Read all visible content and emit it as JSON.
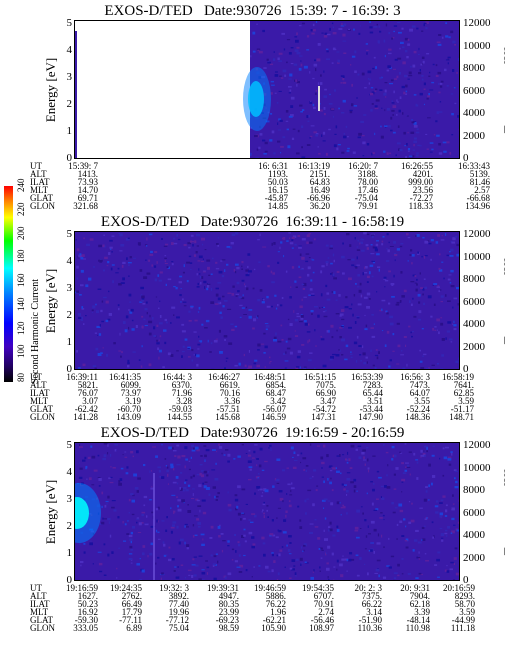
{
  "colorbar": {
    "label": "Second Harmonic Current",
    "ticks": [
      "240",
      "220",
      "200",
      "180",
      "160",
      "140",
      "120",
      "100",
      "80"
    ],
    "colors": [
      "#ff0000",
      "#ff8800",
      "#ffff00",
      "#00ff00",
      "#00ffff",
      "#0080ff",
      "#0000ff",
      "#4000c0",
      "#200060",
      "#000000"
    ]
  },
  "chart_data": [
    {
      "type": "heatmap",
      "title": "EXOS-D/TED   Date:930726  15:39: 7 - 16:39: 3",
      "ylabel": "Energy [eV]",
      "y2label": "Temperature [K]",
      "ylim": [
        0,
        5
      ],
      "y2lim": [
        0,
        12000
      ],
      "yticks": [
        "0",
        "1",
        "2",
        "3",
        "4",
        "5"
      ],
      "y2ticks": [
        "0",
        "2000",
        "4000",
        "6000",
        "8000",
        "10000",
        "12000"
      ],
      "row_labels": [
        "UT",
        "ALT",
        "ILAT",
        "MLT",
        "GLAT",
        "GLON"
      ],
      "columns": [
        [
          "15:39: 7",
          "1413.",
          "73.93",
          "14.70",
          "69.71",
          "321.68"
        ],
        [
          "16: 6:31",
          "1193.",
          "50.03",
          "16.15",
          "-45.87",
          "14.85"
        ],
        [
          "16:13:19",
          "2151.",
          "64.83",
          "16.49",
          "-66.96",
          "36.20"
        ],
        [
          "16:20: 7",
          "3188.",
          "78.00",
          "17.46",
          "-75.04",
          "79.91"
        ],
        [
          "16:26:55",
          "4201.",
          "999.00",
          "23.56",
          "-72.27",
          "118.33"
        ],
        [
          "16:33:43",
          "5139.",
          "81.46",
          "2.57",
          "-66.68",
          "134.96"
        ]
      ]
    },
    {
      "type": "heatmap",
      "title": "EXOS-D/TED   Date:930726  16:39:11 - 16:58:19",
      "ylabel": "Energy [eV]",
      "y2label": "Temperature [K]",
      "ylim": [
        0,
        5
      ],
      "y2lim": [
        0,
        12000
      ],
      "yticks": [
        "0",
        "1",
        "2",
        "3",
        "4",
        "5"
      ],
      "y2ticks": [
        "0",
        "2000",
        "4000",
        "6000",
        "8000",
        "10000",
        "12000"
      ],
      "row_labels": [
        "UT",
        "ALT",
        "ILAT",
        "MLT",
        "GLAT",
        "GLON"
      ],
      "columns": [
        [
          "16:39:11",
          "5821.",
          "76.07",
          "3.07",
          "-62.42",
          "141.28"
        ],
        [
          "16:41:35",
          "6099.",
          "73.97",
          "3.19",
          "-60.70",
          "143.09"
        ],
        [
          "16:44: 3",
          "6370.",
          "71.96",
          "3.28",
          "-59.03",
          "144.55"
        ],
        [
          "16:46:27",
          "6619.",
          "70.16",
          "3.36",
          "-57.51",
          "145.68"
        ],
        [
          "16:48:51",
          "6854.",
          "68.47",
          "3.42",
          "-56.07",
          "146.59"
        ],
        [
          "16:51:15",
          "7075.",
          "66.90",
          "3.47",
          "-54.72",
          "147.31"
        ],
        [
          "16:53:39",
          "7283.",
          "65.44",
          "3.51",
          "-53.44",
          "147.90"
        ],
        [
          "16:56: 3",
          "7473.",
          "64.07",
          "3.55",
          "-52.24",
          "148.36"
        ],
        [
          "16:58:19",
          "7641.",
          "62.85",
          "3.59",
          "-51.17",
          "148.71"
        ]
      ]
    },
    {
      "type": "heatmap",
      "title": "EXOS-D/TED   Date:930726  19:16:59 - 20:16:59",
      "ylabel": "Energy [eV]",
      "y2label": "Temperature [K]",
      "ylim": [
        0,
        5
      ],
      "y2lim": [
        0,
        12000
      ],
      "yticks": [
        "0",
        "1",
        "2",
        "3",
        "4",
        "5"
      ],
      "y2ticks": [
        "0",
        "2000",
        "4000",
        "6000",
        "8000",
        "10000",
        "12000"
      ],
      "row_labels": [
        "UT",
        "ALT",
        "ILAT",
        "MLT",
        "GLAT",
        "GLON"
      ],
      "columns": [
        [
          "19:16:59",
          "1627.",
          "50.23",
          "16.92",
          "-59.30",
          "333.05"
        ],
        [
          "19:24:35",
          "2762.",
          "66.49",
          "17.79",
          "-77.11",
          "6.89"
        ],
        [
          "19:32: 3",
          "3892.",
          "77.40",
          "19.96",
          "-77.12",
          "75.04"
        ],
        [
          "19:39:31",
          "4947.",
          "80.35",
          "23.99",
          "-69.23",
          "98.59"
        ],
        [
          "19:46:59",
          "5886.",
          "76.22",
          "1.96",
          "-62.21",
          "105.90"
        ],
        [
          "19:54:35",
          "6707.",
          "70.91",
          "2.74",
          "-56.46",
          "108.97"
        ],
        [
          "20: 2: 3",
          "7375.",
          "66.22",
          "3.14",
          "-51.90",
          "110.36"
        ],
        [
          "20: 9:31",
          "7904.",
          "62.18",
          "3.39",
          "-48.14",
          "110.98"
        ],
        [
          "20:16:59",
          "8293.",
          "58.70",
          "3.59",
          "-44.99",
          "111.18"
        ]
      ]
    }
  ]
}
